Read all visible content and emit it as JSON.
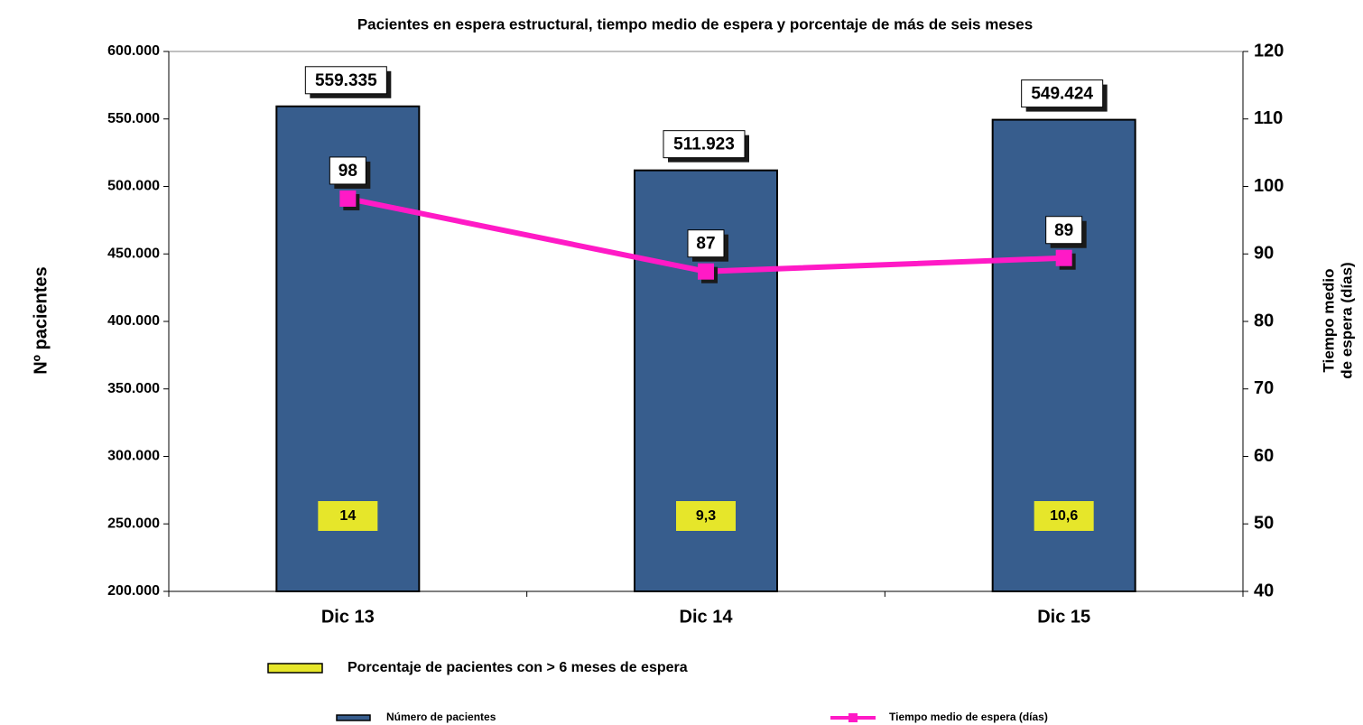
{
  "chart_data": {
    "type": "bar",
    "title": "Pacientes en espera estructural, tiempo medio de espera  y porcentaje de más de seis meses",
    "ylabel": "Nº pacientes",
    "y2label": [
      "Tiempo medio",
      "de espera (días)"
    ],
    "categories": [
      "Dic 13",
      "Dic 14",
      "Dic 15"
    ],
    "series": [
      {
        "name": "Porcentaje de pacientes con > 6 meses  de espera",
        "type": "label",
        "color": "#e6e62a",
        "values": [
          14,
          9.3,
          10.6
        ],
        "value_labels": [
          "14",
          "9,3",
          "10,6"
        ]
      },
      {
        "name": "Número de pacientes",
        "type": "bar",
        "color": "#375d8d",
        "values": [
          559335,
          511923,
          549424
        ],
        "value_labels": [
          "559.335",
          "511.923",
          "549.424"
        ]
      },
      {
        "name": "Tiempo medio de espera (días)",
        "type": "line",
        "axis": "y2",
        "color": "#ff1ac6",
        "values": [
          98.2,
          87.4,
          89.4
        ],
        "value_labels": [
          "98",
          "87",
          "89"
        ]
      }
    ],
    "ylim": [
      200000,
      600000
    ],
    "yticks": [
      {
        "value": 200000,
        "label": "200.000"
      },
      {
        "value": 250000,
        "label": "250.000"
      },
      {
        "value": 300000,
        "label": "300.000"
      },
      {
        "value": 350000,
        "label": "350.000"
      },
      {
        "value": 400000,
        "label": "400.000"
      },
      {
        "value": 450000,
        "label": "450.000"
      },
      {
        "value": 500000,
        "label": "500.000"
      },
      {
        "value": 550000,
        "label": "550.000"
      },
      {
        "value": 600000,
        "label": "600.000"
      }
    ],
    "y2lim": [
      40,
      120
    ],
    "y2ticks": [
      40,
      50,
      60,
      70,
      80,
      90,
      100,
      110,
      120
    ]
  }
}
